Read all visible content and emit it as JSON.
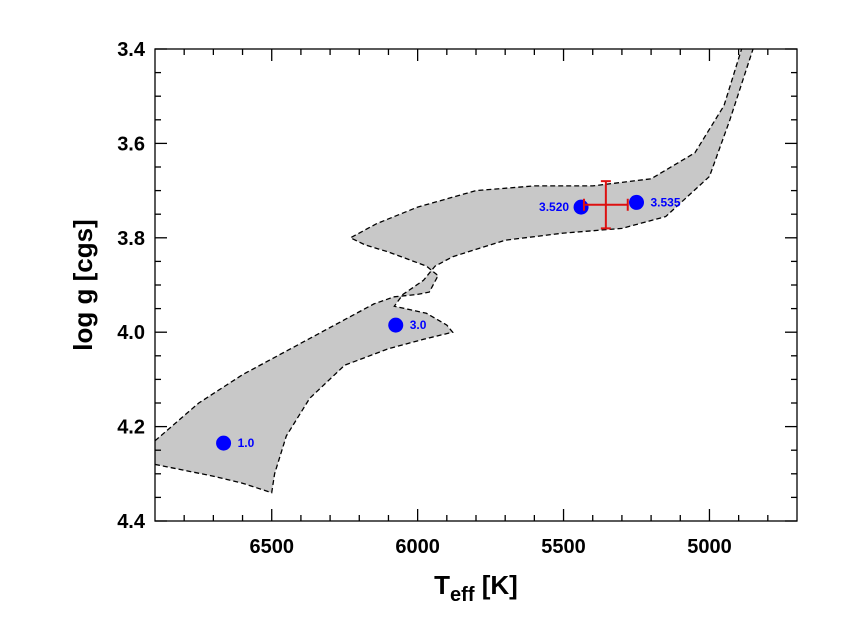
{
  "chart_data": {
    "type": "scatter",
    "xlabel_main": "T",
    "xlabel_sub": "eff",
    "xlabel_unit": " [K]",
    "ylabel": "log g [cgs]",
    "xlim": [
      6900,
      4700
    ],
    "ylim": [
      4.4,
      3.4
    ],
    "x_ticks": [
      "6500",
      "6000",
      "5500",
      "5000"
    ],
    "x_tick_values": [
      6500,
      6000,
      5500,
      5000
    ],
    "y_ticks": [
      "3.4",
      "3.6",
      "3.8",
      "4.0",
      "4.2",
      "4.4"
    ],
    "y_tick_values": [
      3.4,
      3.6,
      3.8,
      4.0,
      4.2,
      4.4
    ],
    "grid": false,
    "colors": {
      "band_fill": "#c8c8c8",
      "band_edge": "#000000",
      "points": "#0000ff",
      "errorbar": "#dd1111"
    },
    "track_band": {
      "upper_edge": [
        [
          6900,
          4.23
        ],
        [
          6750,
          4.15
        ],
        [
          6600,
          4.09
        ],
        [
          6450,
          4.04
        ],
        [
          6300,
          3.99
        ],
        [
          6150,
          3.94
        ],
        [
          6080,
          3.925
        ],
        [
          6000,
          3.92
        ],
        [
          5960,
          3.915
        ],
        [
          5930,
          3.88
        ],
        [
          5970,
          3.86
        ],
        [
          6100,
          3.83
        ],
        [
          6180,
          3.815
        ],
        [
          6230,
          3.8
        ],
        [
          6140,
          3.77
        ],
        [
          6000,
          3.735
        ],
        [
          5800,
          3.7
        ],
        [
          5600,
          3.69
        ],
        [
          5400,
          3.69
        ],
        [
          5200,
          3.675
        ],
        [
          5050,
          3.62
        ],
        [
          4950,
          3.52
        ],
        [
          4880,
          3.38
        ]
      ],
      "lower_edge": [
        [
          6900,
          4.28
        ],
        [
          6700,
          4.305
        ],
        [
          6600,
          4.32
        ],
        [
          6500,
          4.34
        ],
        [
          6490,
          4.3
        ],
        [
          6450,
          4.22
        ],
        [
          6370,
          4.14
        ],
        [
          6250,
          4.07
        ],
        [
          6100,
          4.035
        ],
        [
          5980,
          4.015
        ],
        [
          5880,
          4.0
        ],
        [
          5900,
          3.985
        ],
        [
          5970,
          3.96
        ],
        [
          6080,
          3.945
        ],
        [
          6050,
          3.92
        ],
        [
          5980,
          3.89
        ],
        [
          5940,
          3.86
        ],
        [
          5880,
          3.84
        ],
        [
          5700,
          3.805
        ],
        [
          5500,
          3.79
        ],
        [
          5300,
          3.78
        ],
        [
          5150,
          3.755
        ],
        [
          5000,
          3.67
        ],
        [
          4930,
          3.55
        ],
        [
          4840,
          3.38
        ]
      ]
    },
    "points": [
      {
        "label": "1.0",
        "teff": 6665,
        "logg": 4.235
      },
      {
        "label": "3.0",
        "teff": 6075,
        "logg": 3.985
      },
      {
        "label": "3.520",
        "teff": 5440,
        "logg": 3.735
      },
      {
        "label": "3.535",
        "teff": 5250,
        "logg": 3.725
      }
    ],
    "observation": {
      "teff": 5355,
      "logg": 3.73,
      "teff_err": 75,
      "logg_err": 0.05
    }
  }
}
